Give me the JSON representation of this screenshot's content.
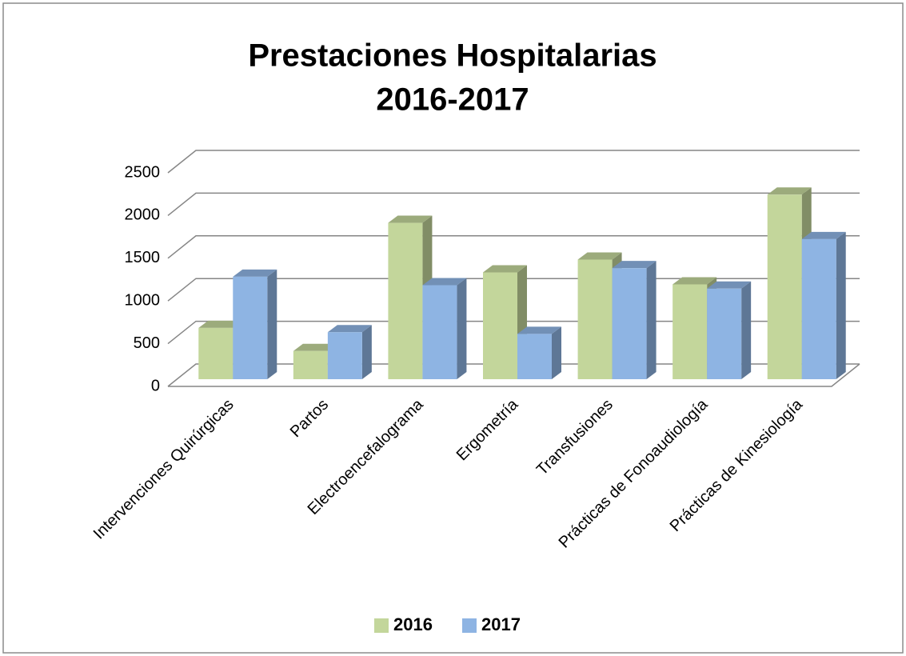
{
  "chart_data": {
    "type": "bar3d",
    "title": [
      "Prestaciones Hospitalarias",
      "2016-2017"
    ],
    "categories": [
      "Intervenciones Quirúrgicas",
      "Partos",
      "Electroencefalograma",
      "Ergometría",
      "Transfusiones",
      "Prácticas de Fonoaudiología",
      "Prácticas de Kinesiología"
    ],
    "series": [
      {
        "name": "2016",
        "color": "#c3d69b",
        "values": [
          600,
          330,
          1830,
          1250,
          1400,
          1110,
          2160
        ]
      },
      {
        "name": "2017",
        "color": "#8eb4e3",
        "values": [
          1200,
          550,
          1100,
          530,
          1300,
          1060,
          1640
        ]
      }
    ],
    "ylim": [
      0,
      2500
    ],
    "yticks": [
      0,
      500,
      1000,
      1500,
      2000,
      2500
    ],
    "grid": true,
    "legend": "bottom"
  }
}
